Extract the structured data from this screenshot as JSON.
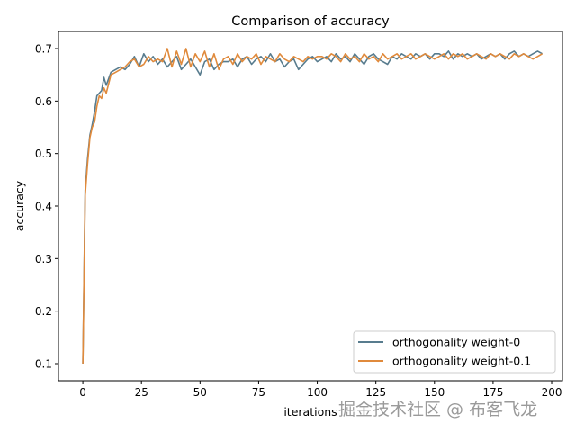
{
  "chart_data": {
    "type": "line",
    "title": "Comparison of accuracy",
    "xlabel": "iterations",
    "ylabel": "accuracy",
    "xlim": [
      -10.4,
      204.6
    ],
    "ylim": [
      0.0674,
      0.7326
    ],
    "xticks": [
      0,
      25,
      50,
      75,
      100,
      125,
      150,
      175,
      200
    ],
    "yticks": [
      0.1,
      0.2,
      0.3,
      0.4,
      0.5,
      0.6,
      0.7
    ],
    "grid": false,
    "legend_position": "lower-right",
    "x": [
      0,
      1,
      2,
      3,
      4,
      5,
      6,
      7,
      8,
      9,
      10,
      12,
      14,
      16,
      18,
      20,
      22,
      24,
      26,
      28,
      30,
      32,
      34,
      36,
      38,
      40,
      42,
      44,
      46,
      48,
      50,
      52,
      54,
      56,
      58,
      60,
      62,
      64,
      66,
      68,
      70,
      72,
      74,
      76,
      78,
      80,
      82,
      84,
      86,
      88,
      90,
      92,
      94,
      96,
      98,
      100,
      102,
      104,
      106,
      108,
      110,
      112,
      114,
      116,
      118,
      120,
      122,
      124,
      126,
      128,
      130,
      132,
      134,
      136,
      138,
      140,
      142,
      144,
      146,
      148,
      150,
      152,
      154,
      156,
      158,
      160,
      162,
      164,
      166,
      168,
      170,
      172,
      174,
      176,
      178,
      180,
      182,
      184,
      186,
      188,
      190,
      192,
      194,
      196
    ],
    "series": [
      {
        "name": "orthogonality weight-0",
        "color": "#587c8e",
        "values": [
          0.1,
          0.43,
          0.49,
          0.535,
          0.555,
          0.58,
          0.61,
          0.615,
          0.62,
          0.645,
          0.63,
          0.655,
          0.66,
          0.665,
          0.66,
          0.67,
          0.685,
          0.665,
          0.69,
          0.675,
          0.685,
          0.67,
          0.68,
          0.665,
          0.675,
          0.685,
          0.66,
          0.67,
          0.68,
          0.665,
          0.65,
          0.675,
          0.68,
          0.66,
          0.67,
          0.675,
          0.675,
          0.68,
          0.665,
          0.68,
          0.685,
          0.67,
          0.68,
          0.685,
          0.675,
          0.69,
          0.675,
          0.68,
          0.665,
          0.675,
          0.68,
          0.66,
          0.67,
          0.68,
          0.685,
          0.675,
          0.68,
          0.685,
          0.675,
          0.69,
          0.68,
          0.685,
          0.675,
          0.69,
          0.68,
          0.67,
          0.685,
          0.69,
          0.68,
          0.675,
          0.67,
          0.685,
          0.68,
          0.69,
          0.685,
          0.68,
          0.69,
          0.685,
          0.69,
          0.68,
          0.69,
          0.69,
          0.685,
          0.695,
          0.68,
          0.69,
          0.685,
          0.69,
          0.685,
          0.69,
          0.68,
          0.685,
          0.69,
          0.685,
          0.69,
          0.68,
          0.69,
          0.695,
          0.685,
          0.69,
          0.685,
          0.69,
          0.695,
          0.69
        ]
      },
      {
        "name": "orthogonality weight-0.1",
        "color": "#e08a3c",
        "values": [
          0.1,
          0.42,
          0.48,
          0.53,
          0.55,
          0.56,
          0.59,
          0.61,
          0.605,
          0.625,
          0.615,
          0.65,
          0.655,
          0.66,
          0.665,
          0.675,
          0.68,
          0.665,
          0.67,
          0.685,
          0.675,
          0.68,
          0.675,
          0.7,
          0.665,
          0.695,
          0.67,
          0.7,
          0.665,
          0.69,
          0.675,
          0.695,
          0.665,
          0.69,
          0.66,
          0.68,
          0.685,
          0.67,
          0.69,
          0.675,
          0.685,
          0.68,
          0.69,
          0.67,
          0.685,
          0.68,
          0.675,
          0.69,
          0.68,
          0.675,
          0.685,
          0.68,
          0.675,
          0.685,
          0.68,
          0.685,
          0.685,
          0.68,
          0.69,
          0.685,
          0.675,
          0.69,
          0.68,
          0.685,
          0.675,
          0.69,
          0.68,
          0.685,
          0.675,
          0.69,
          0.68,
          0.685,
          0.69,
          0.68,
          0.685,
          0.69,
          0.68,
          0.685,
          0.69,
          0.685,
          0.68,
          0.685,
          0.69,
          0.68,
          0.69,
          0.685,
          0.69,
          0.68,
          0.685,
          0.69,
          0.685,
          0.68,
          0.69,
          0.685,
          0.69,
          0.685,
          0.68,
          0.69,
          0.685,
          0.69,
          0.685,
          0.68,
          0.685,
          0.69
        ]
      }
    ]
  },
  "watermark": "掘金技术社区 @ 布客飞龙"
}
